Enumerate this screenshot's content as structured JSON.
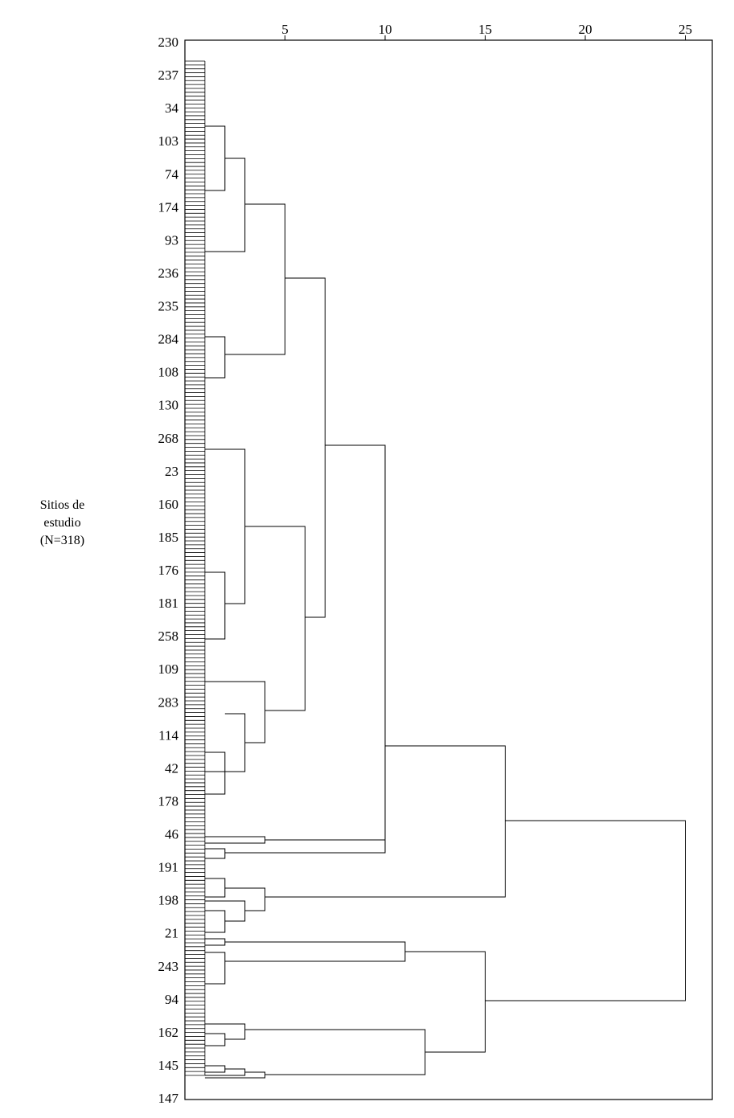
{
  "chart_data": {
    "type": "dendrogram",
    "y_title_lines": [
      "Sitios de",
      "estudio",
      "(N=318)"
    ],
    "x_ticks": [
      5,
      10,
      15,
      20,
      25
    ],
    "x_range": [
      0,
      26.4
    ],
    "leaf_labels": [
      "230",
      "237",
      "34",
      "103",
      "74",
      "174",
      "93",
      "236",
      "235",
      "284",
      "108",
      "130",
      "268",
      "23",
      "160",
      "185",
      "176",
      "181",
      "258",
      "109",
      "283",
      "114",
      "42",
      "178",
      "46",
      "191",
      "198",
      "21",
      "243",
      "94",
      "162",
      "145",
      "147"
    ],
    "leaf_count": 318,
    "merges": [
      {
        "id": "A1",
        "height": 2,
        "children": [
          "leaves:19-50",
          "leaves:51-89"
        ]
      },
      {
        "id": "A2",
        "height": 3,
        "children": [
          "A1",
          "leaves:90-125"
        ]
      },
      {
        "id": "A3",
        "height": 2,
        "children": [
          "leaves:126-175",
          "leaves:176-195"
        ]
      },
      {
        "id": "A4",
        "height": 5,
        "children": [
          "A2",
          "A3"
        ]
      },
      {
        "id": "B1",
        "height": 2,
        "children": [
          "leaves:196-221",
          "leaves:222-245"
        ]
      },
      {
        "id": "B2",
        "height": 3,
        "children": [
          "leaves:128-230",
          "B1"
        ]
      },
      {
        "id": "B3",
        "height": 2,
        "children": [
          "leaves:246-275",
          "leaves:276-290"
        ]
      },
      {
        "id": "B4",
        "height": 3,
        "children": [
          "B3",
          "leaves:291-300"
        ]
      },
      {
        "id": "B5",
        "height": 4,
        "children": [
          "leaves:301-308",
          "B4"
        ]
      },
      {
        "id": "B6",
        "height": 6,
        "children": [
          "B2",
          "B5"
        ]
      },
      {
        "id": "C1",
        "height": 7,
        "children": [
          "A4",
          "B6"
        ]
      },
      {
        "id": "E1",
        "height": 4,
        "children": [
          "leaves:309-312",
          "leaves:313-314"
        ]
      },
      {
        "id": "E2",
        "height": 2,
        "children": [
          "leaves:315-316",
          "leaves:317-318"
        ]
      },
      {
        "id": "E3",
        "height": 10,
        "children": [
          "E1",
          "E2"
        ]
      },
      {
        "id": "D1",
        "height": 10,
        "children": [
          "C1",
          "E3"
        ]
      },
      {
        "id": "F1",
        "height": 2,
        "children": [
          "leaves:a",
          "leaves:b"
        ]
      },
      {
        "id": "F2",
        "height": 2,
        "children": [
          "leaves:c",
          "leaves:d"
        ]
      },
      {
        "id": "F3",
        "height": 3,
        "children": [
          "leaves:e",
          "F2"
        ]
      },
      {
        "id": "F4",
        "height": 4,
        "children": [
          "F1",
          "F3"
        ]
      },
      {
        "id": "G1",
        "height": 16,
        "children": [
          "D1",
          "F4"
        ]
      },
      {
        "id": "H1",
        "height": 2,
        "children": [
          "leaves:f",
          "leaves:g"
        ]
      },
      {
        "id": "H2",
        "height": 2,
        "children": [
          "leaves:h",
          "leaves:i"
        ]
      },
      {
        "id": "H3",
        "height": 11,
        "children": [
          "H1",
          "H2"
        ]
      },
      {
        "id": "I1",
        "height": 2,
        "children": [
          "leaves:j",
          "leaves:k"
        ]
      },
      {
        "id": "I2",
        "height": 3,
        "children": [
          "leaves:l",
          "I1"
        ]
      },
      {
        "id": "I3",
        "height": 2,
        "children": [
          "leaves:m",
          "leaves:n"
        ]
      },
      {
        "id": "I4",
        "height": 3,
        "children": [
          "I3",
          "leaves:o"
        ]
      },
      {
        "id": "I5",
        "height": 4,
        "children": [
          "I4",
          "leaves:p"
        ]
      },
      {
        "id": "I6",
        "height": 12,
        "children": [
          "I2",
          "I5"
        ]
      },
      {
        "id": "J1",
        "height": 15,
        "children": [
          "H3",
          "I6"
        ]
      },
      {
        "id": "ROOT",
        "height": 25,
        "children": [
          "G1",
          "J1"
        ]
      }
    ]
  }
}
